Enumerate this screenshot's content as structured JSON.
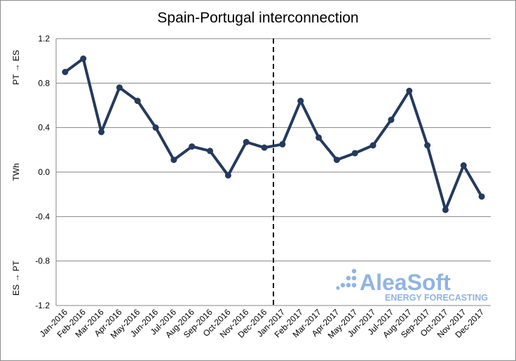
{
  "chart_data": {
    "type": "line",
    "title": "Spain-Portugal interconnection",
    "ylabel": "TWh",
    "ylabel_top": "PT → ES",
    "ylabel_bottom": "ES → PT",
    "ylim": [
      -1.2,
      1.2
    ],
    "yticks": [
      -1.2,
      -0.8,
      -0.4,
      0.0,
      0.4,
      0.8,
      1.2
    ],
    "ytick_labels": [
      "-1.2",
      "-0.8",
      "-0.4",
      "0.0",
      "0.4",
      "0.8",
      "1.2"
    ],
    "grid": true,
    "divider_after": "Dec-2016",
    "categories": [
      "Jan-2016",
      "Feb-2016",
      "Mar-2016",
      "Apr-2016",
      "May-2016",
      "Jun-2016",
      "Jul-2016",
      "Aug-2016",
      "Sep-2016",
      "Oct-2016",
      "Nov-2016",
      "Dec-2016",
      "Jan-2017",
      "Feb-2017",
      "Mar-2017",
      "Apr-2017",
      "May-2017",
      "Jun-2017",
      "Jul-2017",
      "Aug-2017",
      "Sep-2017",
      "Oct-2017",
      "Nov-2017",
      "Dec-2017"
    ],
    "series": [
      {
        "color": "#243a5e",
        "values": [
          0.9,
          1.02,
          0.36,
          0.76,
          0.64,
          0.4,
          0.11,
          0.23,
          0.19,
          -0.03,
          0.27,
          0.22,
          0.25,
          0.64,
          0.31,
          0.11,
          0.17,
          0.24,
          0.47,
          0.73,
          0.24,
          -0.34,
          0.06,
          -0.22
        ]
      }
    ]
  },
  "logo": {
    "name": "AleaSoft",
    "tagline": "ENERGY FORECASTING",
    "color": "#8fb4e3"
  }
}
